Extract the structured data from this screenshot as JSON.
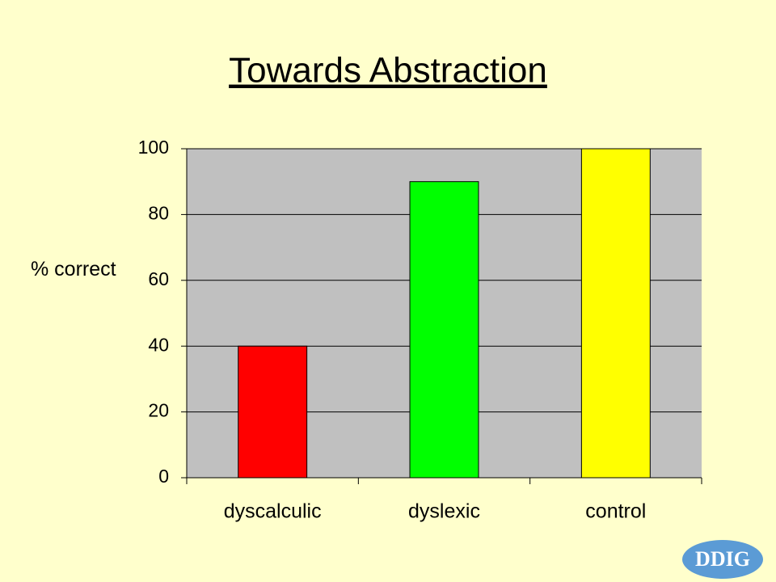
{
  "chart_data": {
    "type": "bar",
    "title": "Towards Abstraction",
    "y_label": "% correct",
    "categories": [
      "dyscalculic",
      "dyslexic",
      "control"
    ],
    "values": [
      40,
      90,
      100
    ],
    "colors": [
      "#ff0000",
      "#00ff00",
      "#ffff00"
    ],
    "ylim": [
      0,
      100
    ],
    "yticks": [
      0,
      20,
      40,
      60,
      80,
      100
    ],
    "grid": true
  },
  "logo": "DDIG"
}
